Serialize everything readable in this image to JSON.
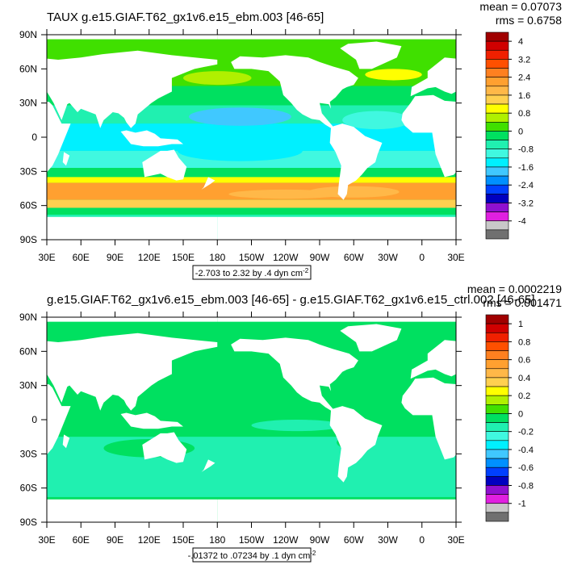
{
  "panels": [
    {
      "title": "TAUX g.e15.GIAF.T62_gx1v6.e15_ebm.003 [46-65]",
      "mean": "mean = 0.07073",
      "rms": "rms = 0.6758",
      "range": "-2.703 to 2.32 by .4 dyn cm",
      "range_sup": "-2",
      "lat_ticks": [
        {
          "value": 90,
          "label": "90N"
        },
        {
          "value": 60,
          "label": "60N"
        },
        {
          "value": 30,
          "label": "30N"
        },
        0,
        {
          "value": -30,
          "label": "30S"
        },
        {
          "value": -60,
          "label": "60S"
        },
        {
          "value": -90,
          "label": "90S"
        }
      ],
      "lon_ticks": [
        {
          "value": 30,
          "label": "30E"
        },
        {
          "value": 60,
          "label": "60E"
        },
        {
          "value": 90,
          "label": "90E"
        },
        {
          "value": 120,
          "label": "120E"
        },
        {
          "value": 150,
          "label": "150E"
        },
        180,
        {
          "value": 210,
          "label": "150W"
        },
        {
          "value": 240,
          "label": "120W"
        },
        {
          "value": 270,
          "label": "90W"
        },
        {
          "value": 300,
          "label": "60W"
        },
        {
          "value": 330,
          "label": "30W"
        },
        {
          "value": 360,
          "label": "0"
        },
        {
          "value": 390,
          "label": "30E"
        }
      ],
      "levels": [
        4,
        3.2,
        2.4,
        1.6,
        0.8,
        0,
        -0.8,
        -1.6,
        -2.4,
        -3.2,
        -4
      ],
      "field": "top"
    },
    {
      "title": "g.e15.GIAF.T62_gx1v6.e15_ebm.003 [46-65] - g.e15.GIAF.T62_gx1v6.e15_ctrl.002 [46-65]",
      "mean": "mean = 0.0002219",
      "rms": "rms = 0.001471",
      "range": "-.01372 to .07234 by .1 dyn cm",
      "range_sup": "-2",
      "lat_ticks": [
        {
          "value": 90,
          "label": "90N"
        },
        {
          "value": 60,
          "label": "60N"
        },
        {
          "value": 30,
          "label": "30N"
        },
        0,
        {
          "value": -30,
          "label": "30S"
        },
        {
          "value": -60,
          "label": "60S"
        },
        {
          "value": -90,
          "label": "90S"
        }
      ],
      "lon_ticks": [
        {
          "value": 30,
          "label": "30E"
        },
        {
          "value": 60,
          "label": "60E"
        },
        {
          "value": 90,
          "label": "90E"
        },
        {
          "value": 120,
          "label": "120E"
        },
        {
          "value": 150,
          "label": "150E"
        },
        180,
        {
          "value": 210,
          "label": "150W"
        },
        {
          "value": 240,
          "label": "120W"
        },
        {
          "value": 270,
          "label": "90W"
        },
        {
          "value": 300,
          "label": "60W"
        },
        {
          "value": 330,
          "label": "30W"
        },
        {
          "value": 360,
          "label": "0"
        },
        {
          "value": 390,
          "label": "30E"
        }
      ],
      "levels": [
        1,
        0.8,
        0.6,
        0.4,
        0.2,
        0,
        -0.2,
        -0.4,
        -0.6,
        -0.8,
        -1
      ],
      "field": "bottom"
    }
  ],
  "colors": [
    "#a00000",
    "#d00000",
    "#f02000",
    "#ff5000",
    "#ff8020",
    "#ffa030",
    "#ffb848",
    "#ffd050",
    "#ffff00",
    "#b0f000",
    "#40e000",
    "#00e060",
    "#20f0b0",
    "#40f8e0",
    "#00f0ff",
    "#40c8ff",
    "#0090ff",
    "#0040ff",
    "#0000c0",
    "#9010d0",
    "#e020e0",
    "#c8c8c8",
    "#707070"
  ]
}
